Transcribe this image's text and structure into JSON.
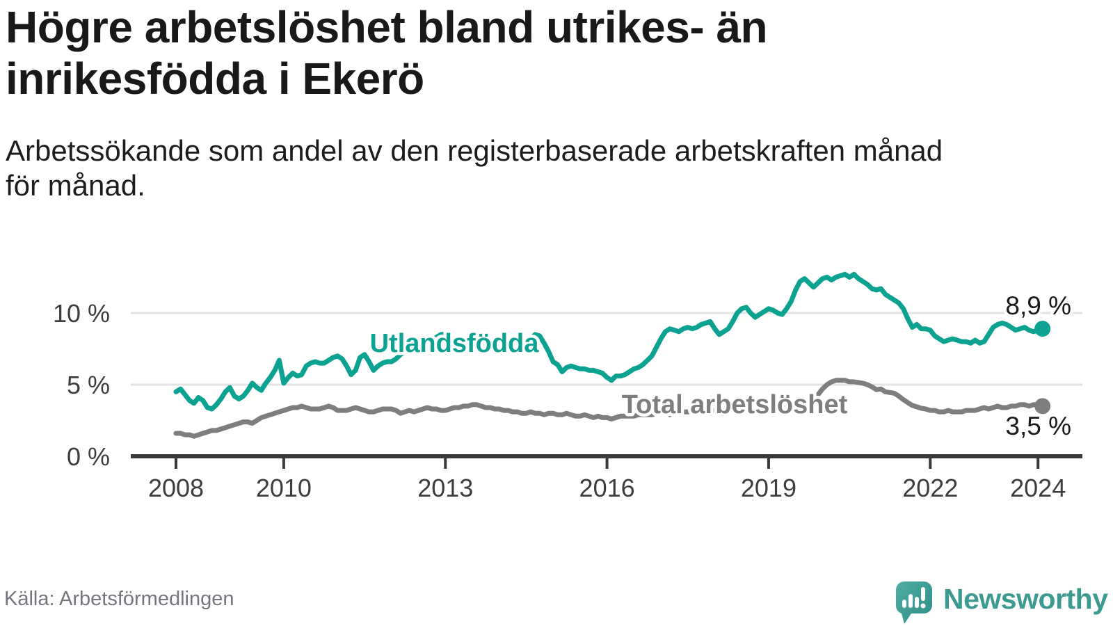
{
  "header": {
    "title_lines": [
      "Högre arbetslöshet bland utrikes- än",
      "inrikesfödda i Ekerö"
    ],
    "subtitle_lines": [
      "Arbetssökande som andel av den registerbaserade arbetskraften månad",
      "för månad."
    ]
  },
  "footer": {
    "source": "Källa: Arbetsförmedlingen",
    "brand": "Newsworthy",
    "logo_icon": "newsworthy-speech-bubble-bar-chart-icon"
  },
  "colors": {
    "foreign_born_line": "#0ba291",
    "total_line": "#7e7e7e",
    "axis": "#3a3a3a",
    "grid": "#e4e4e4",
    "tick_label": "#3d3d3d",
    "value_label": "#191919",
    "title": "#191919",
    "muted": "#75757e",
    "brand": "#3d9a91",
    "background": "#ffffff"
  },
  "chart_data": {
    "type": "line",
    "x_start": 2008.0,
    "x_step_years": 0.0833333,
    "x_ticks": [
      2008,
      2010,
      2013,
      2016,
      2019,
      2022,
      2024
    ],
    "y_ticks": [
      {
        "value": 0,
        "label": "0 %"
      },
      {
        "value": 5,
        "label": "5 %"
      },
      {
        "value": 10,
        "label": "10 %"
      }
    ],
    "y_gridlines": [
      5,
      10
    ],
    "ylim": [
      0,
      13.5
    ],
    "unit": "%",
    "grid": "horizontal",
    "legend_position": "inline-labels",
    "series": [
      {
        "name": "Utlandsfödda",
        "end_label": "8,9 %",
        "end_value": 8.9,
        "color": "#0ba291",
        "values": [
          4.5,
          4.7,
          4.3,
          3.9,
          3.7,
          4.1,
          3.9,
          3.4,
          3.3,
          3.6,
          4.0,
          4.5,
          4.8,
          4.2,
          4.0,
          4.2,
          4.6,
          5.1,
          4.8,
          4.6,
          5.1,
          5.5,
          6.0,
          6.7,
          5.1,
          5.5,
          5.8,
          5.6,
          5.7,
          6.3,
          6.5,
          6.6,
          6.5,
          6.5,
          6.7,
          6.9,
          7.0,
          6.8,
          6.3,
          5.7,
          6.0,
          6.9,
          7.1,
          6.6,
          6.0,
          6.3,
          6.5,
          6.6,
          6.6,
          6.8,
          7.1,
          7.3,
          7.5,
          7.6,
          7.7,
          7.8,
          7.9,
          8.1,
          8.3,
          8.5,
          8.5,
          8.3,
          8.0,
          7.9,
          7.8,
          7.9,
          8.0,
          7.9,
          7.8,
          7.9,
          7.8,
          7.9,
          7.8,
          7.9,
          7.8,
          7.7,
          7.8,
          7.9,
          8.0,
          8.2,
          8.5,
          8.4,
          7.9,
          7.3,
          6.6,
          6.4,
          5.9,
          6.2,
          6.3,
          6.2,
          6.1,
          6.1,
          6.0,
          6.0,
          5.9,
          5.8,
          5.5,
          5.3,
          5.6,
          5.6,
          5.7,
          5.9,
          6.1,
          6.2,
          6.4,
          6.7,
          7.0,
          7.6,
          8.2,
          8.7,
          8.9,
          8.8,
          8.7,
          8.9,
          9.0,
          8.9,
          9.0,
          9.2,
          9.3,
          9.4,
          8.9,
          8.5,
          8.7,
          8.9,
          9.4,
          10.0,
          10.3,
          10.4,
          10.0,
          9.7,
          9.9,
          10.1,
          10.3,
          10.2,
          10.0,
          9.9,
          10.3,
          10.8,
          11.6,
          12.2,
          12.4,
          12.1,
          11.8,
          12.1,
          12.4,
          12.5,
          12.3,
          12.5,
          12.6,
          12.7,
          12.5,
          12.7,
          12.4,
          12.2,
          12.0,
          11.7,
          11.6,
          11.7,
          11.3,
          11.1,
          10.9,
          10.7,
          10.3,
          9.6,
          9.0,
          9.2,
          8.9,
          8.9,
          8.8,
          8.4,
          8.2,
          8.0,
          8.1,
          8.2,
          8.1,
          8.0,
          8.0,
          7.9,
          8.1,
          7.9,
          8.0,
          8.5,
          9.0,
          9.2,
          9.3,
          9.2,
          9.0,
          8.8,
          8.9,
          9.0,
          8.8,
          8.7,
          8.8,
          8.9
        ]
      },
      {
        "name": "Total arbetslöshet",
        "end_label": "3,5 %",
        "end_value": 3.5,
        "color": "#7e7e7e",
        "values": [
          1.6,
          1.6,
          1.5,
          1.5,
          1.4,
          1.5,
          1.6,
          1.7,
          1.8,
          1.8,
          1.9,
          2.0,
          2.1,
          2.2,
          2.3,
          2.4,
          2.4,
          2.3,
          2.5,
          2.7,
          2.8,
          2.9,
          3.0,
          3.1,
          3.2,
          3.3,
          3.4,
          3.4,
          3.5,
          3.4,
          3.3,
          3.3,
          3.3,
          3.4,
          3.5,
          3.4,
          3.2,
          3.2,
          3.2,
          3.3,
          3.4,
          3.3,
          3.2,
          3.1,
          3.1,
          3.2,
          3.3,
          3.3,
          3.3,
          3.2,
          3.0,
          3.1,
          3.2,
          3.1,
          3.2,
          3.3,
          3.4,
          3.3,
          3.3,
          3.2,
          3.2,
          3.3,
          3.4,
          3.4,
          3.5,
          3.5,
          3.6,
          3.6,
          3.5,
          3.4,
          3.4,
          3.3,
          3.3,
          3.2,
          3.2,
          3.1,
          3.1,
          3.0,
          3.0,
          3.1,
          3.0,
          3.0,
          2.9,
          3.0,
          3.0,
          2.9,
          2.9,
          3.0,
          2.9,
          2.8,
          2.8,
          2.9,
          2.8,
          2.7,
          2.8,
          2.7,
          2.7,
          2.6,
          2.7,
          2.8,
          2.8,
          2.8,
          2.8,
          2.9,
          2.9,
          2.9,
          2.9,
          3.0,
          3.0,
          3.0,
          2.9,
          3.0,
          3.0,
          3.1,
          3.1,
          3.1,
          3.0,
          3.1,
          3.1,
          3.2,
          3.2,
          3.1,
          3.2,
          3.2,
          3.2,
          3.3,
          3.3,
          3.3,
          3.2,
          3.3,
          3.3,
          3.4,
          3.4,
          3.4,
          3.5,
          3.5,
          3.6,
          3.6,
          3.7,
          3.8,
          3.9,
          4.0,
          4.1,
          4.3,
          4.7,
          5.0,
          5.2,
          5.3,
          5.3,
          5.3,
          5.2,
          5.2,
          5.15,
          5.1,
          5.0,
          4.85,
          4.65,
          4.7,
          4.5,
          4.45,
          4.4,
          4.2,
          3.95,
          3.75,
          3.55,
          3.45,
          3.35,
          3.3,
          3.2,
          3.2,
          3.1,
          3.1,
          3.2,
          3.1,
          3.1,
          3.1,
          3.2,
          3.2,
          3.2,
          3.3,
          3.4,
          3.3,
          3.4,
          3.5,
          3.4,
          3.4,
          3.5,
          3.5,
          3.6,
          3.6,
          3.5,
          3.6,
          3.6,
          3.5
        ]
      }
    ]
  }
}
